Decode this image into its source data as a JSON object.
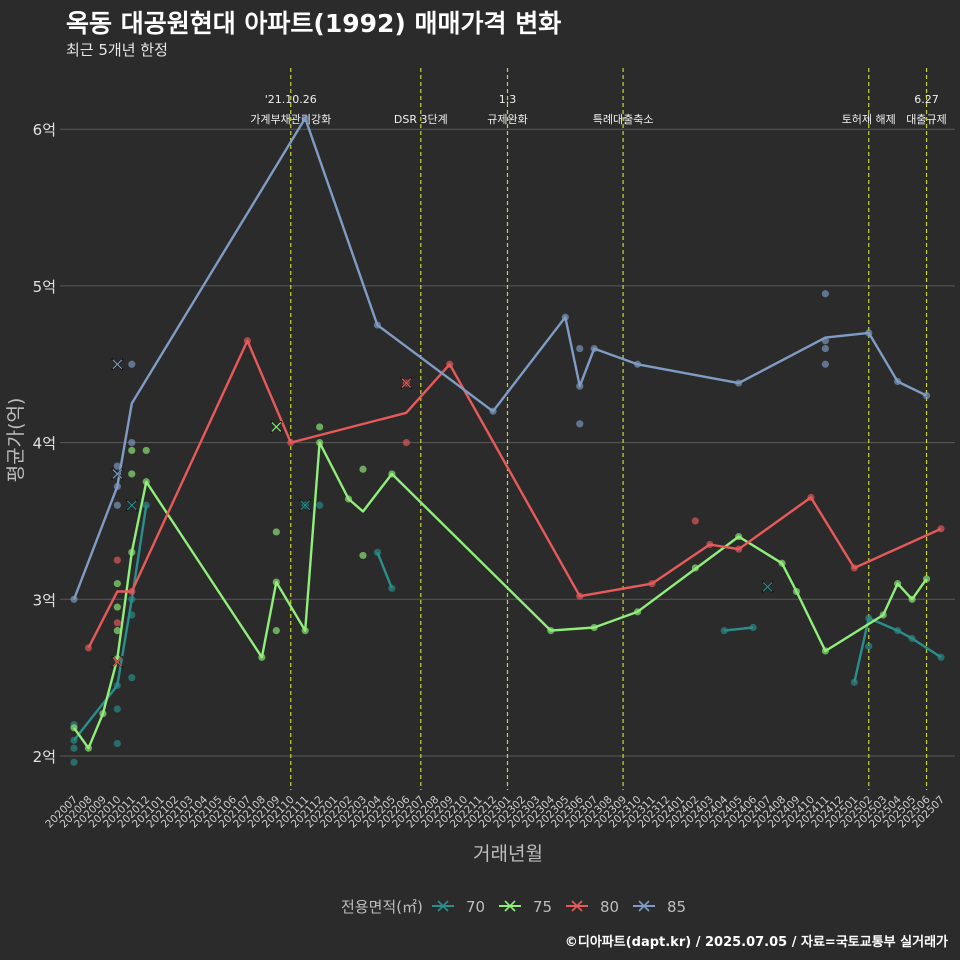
{
  "title": "옥동 대공원현대 아파트(1992) 매매가격 변화",
  "subtitle": "최근 5개년 한정",
  "caption": "©디아파트(dapt.kr) / 2025.07.05 / 자료=국토교통부 실거래가",
  "colors": {
    "background": "#2b2b2b",
    "grid": "#5a5a5a",
    "event_line": "#c8d43c",
    "axis_text": "#bdbdbd",
    "series_70": "#2a8f8c",
    "series_75": "#90ee7a",
    "series_80": "#e85a5a",
    "series_85": "#7f9cc4"
  },
  "chart_data": {
    "type": "line",
    "xlabel": "거래년월",
    "ylabel": "평균가(억)",
    "x_ticks": [
      "202007",
      "202008",
      "202009",
      "202010",
      "202011",
      "202012",
      "202101",
      "202102",
      "202103",
      "202104",
      "202105",
      "202106",
      "202107",
      "202108",
      "202109",
      "202110",
      "202111",
      "202112",
      "202201",
      "202202",
      "202203",
      "202204",
      "202205",
      "202206",
      "202207",
      "202208",
      "202209",
      "202210",
      "202211",
      "202212",
      "202301",
      "202302",
      "202303",
      "202304",
      "202305",
      "202306",
      "202307",
      "202308",
      "202309",
      "202310",
      "202311",
      "202312",
      "202401",
      "202402",
      "202403",
      "202404",
      "202405",
      "202406",
      "202407",
      "202408",
      "202409",
      "202410",
      "202411",
      "202412",
      "202501",
      "202502",
      "202503",
      "202504",
      "202505",
      "202506",
      "202507"
    ],
    "y_ticks": [
      {
        "value": 2,
        "label": "2억"
      },
      {
        "value": 3,
        "label": "3억"
      },
      {
        "value": 4,
        "label": "4억"
      },
      {
        "value": 5,
        "label": "5억"
      },
      {
        "value": 6,
        "label": "6억"
      }
    ],
    "ylim": [
      1.8,
      6.4
    ],
    "legend": {
      "title": "전용면적(㎡)",
      "position": "bottom"
    },
    "events": [
      {
        "x": "202110",
        "lines": [
          "'21.10.26",
          "가계부채관리강화"
        ]
      },
      {
        "x": "202207",
        "lines": [
          "DSR 3단계"
        ]
      },
      {
        "x": "202301",
        "lines": [
          "1.3",
          "규제완화"
        ]
      },
      {
        "x": "202309",
        "lines": [
          "특례대출축소"
        ]
      },
      {
        "x": "202502",
        "lines": [
          "토허제 해제"
        ]
      },
      {
        "x": "202506",
        "lines": [
          "6.27",
          "대출규제"
        ]
      }
    ],
    "series": [
      {
        "name": "70",
        "line": [
          [
            "202007",
            2.1
          ],
          [
            "202010",
            2.45
          ],
          [
            "202011",
            3.0
          ],
          [
            "202012",
            3.6
          ],
          [
            "202204",
            3.3
          ],
          [
            "202205",
            3.07
          ],
          [
            "202404",
            2.8
          ],
          [
            "202406",
            2.82
          ],
          [
            "202501",
            2.47
          ],
          [
            "202502",
            2.88
          ],
          [
            "202504",
            2.8
          ],
          [
            "202505",
            2.75
          ],
          [
            "202507",
            2.63
          ]
        ],
        "points": [
          [
            "202007",
            1.96
          ],
          [
            "202007",
            2.05
          ],
          [
            "202007",
            2.1
          ],
          [
            "202007",
            2.2
          ],
          [
            "202010",
            2.08
          ],
          [
            "202010",
            2.3
          ],
          [
            "202010",
            2.45
          ],
          [
            "202011",
            2.5
          ],
          [
            "202011",
            2.9
          ],
          [
            "202011",
            3.0
          ],
          [
            "202012",
            3.6
          ],
          [
            "202111",
            3.6
          ],
          [
            "202112",
            3.6
          ],
          [
            "202204",
            3.3
          ],
          [
            "202205",
            3.07
          ],
          [
            "202404",
            2.8
          ],
          [
            "202406",
            2.82
          ],
          [
            "202501",
            2.47
          ],
          [
            "202502",
            2.7
          ],
          [
            "202502",
            2.88
          ],
          [
            "202504",
            2.8
          ],
          [
            "202505",
            2.75
          ],
          [
            "202507",
            2.63
          ]
        ],
        "crosses": [
          [
            "202011",
            3.6
          ],
          [
            "202111",
            3.6
          ],
          [
            "202407",
            3.08
          ]
        ]
      },
      {
        "name": "75",
        "line": [
          [
            "202007",
            2.18
          ],
          [
            "202008",
            2.05
          ],
          [
            "202009",
            2.27
          ],
          [
            "202010",
            2.62
          ],
          [
            "202011",
            3.3
          ],
          [
            "202012",
            3.75
          ],
          [
            "202108",
            2.63
          ],
          [
            "202109",
            3.11
          ],
          [
            "202111",
            2.8
          ],
          [
            "202112",
            4.0
          ],
          [
            "202202",
            3.64
          ],
          [
            "202203",
            3.56
          ],
          [
            "202205",
            3.8
          ],
          [
            "202304",
            2.8
          ],
          [
            "202307",
            2.82
          ],
          [
            "202310",
            2.92
          ],
          [
            "202405",
            3.4
          ],
          [
            "202408",
            3.23
          ],
          [
            "202409",
            3.05
          ],
          [
            "202411",
            2.67
          ],
          [
            "202503",
            2.9
          ],
          [
            "202504",
            3.1
          ],
          [
            "202505",
            3.0
          ],
          [
            "202506",
            3.13
          ]
        ],
        "points": [
          [
            "202007",
            2.18
          ],
          [
            "202008",
            2.05
          ],
          [
            "202009",
            2.27
          ],
          [
            "202010",
            2.62
          ],
          [
            "202010",
            2.8
          ],
          [
            "202010",
            2.95
          ],
          [
            "202010",
            3.1
          ],
          [
            "202011",
            3.3
          ],
          [
            "202011",
            3.8
          ],
          [
            "202011",
            3.95
          ],
          [
            "202012",
            3.75
          ],
          [
            "202012",
            3.95
          ],
          [
            "202108",
            2.63
          ],
          [
            "202109",
            2.8
          ],
          [
            "202109",
            3.11
          ],
          [
            "202109",
            3.43
          ],
          [
            "202111",
            2.8
          ],
          [
            "202112",
            4.0
          ],
          [
            "202112",
            4.1
          ],
          [
            "202202",
            3.64
          ],
          [
            "202203",
            3.28
          ],
          [
            "202203",
            3.83
          ],
          [
            "202205",
            3.8
          ],
          [
            "202304",
            2.8
          ],
          [
            "202307",
            2.82
          ],
          [
            "202310",
            2.92
          ],
          [
            "202402",
            3.2
          ],
          [
            "202405",
            3.4
          ],
          [
            "202408",
            3.23
          ],
          [
            "202409",
            3.05
          ],
          [
            "202411",
            2.67
          ],
          [
            "202503",
            2.9
          ],
          [
            "202504",
            3.1
          ],
          [
            "202505",
            3.0
          ],
          [
            "202506",
            3.13
          ]
        ],
        "crosses": [
          [
            "202109",
            4.1
          ]
        ]
      },
      {
        "name": "80",
        "line": [
          [
            "202008",
            2.69
          ],
          [
            "202010",
            3.05
          ],
          [
            "202011",
            3.05
          ],
          [
            "202107",
            4.65
          ],
          [
            "202110",
            4.0
          ],
          [
            "202206",
            4.19
          ],
          [
            "202209",
            4.5
          ],
          [
            "202306",
            3.02
          ],
          [
            "202311",
            3.1
          ],
          [
            "202403",
            3.35
          ],
          [
            "202405",
            3.32
          ],
          [
            "202410",
            3.65
          ],
          [
            "202501",
            3.2
          ],
          [
            "202507",
            3.45
          ]
        ],
        "points": [
          [
            "202008",
            2.69
          ],
          [
            "202010",
            2.85
          ],
          [
            "202010",
            3.25
          ],
          [
            "202011",
            3.05
          ],
          [
            "202107",
            4.65
          ],
          [
            "202110",
            4.0
          ],
          [
            "202206",
            4.0
          ],
          [
            "202206",
            4.38
          ],
          [
            "202209",
            4.5
          ],
          [
            "202306",
            3.02
          ],
          [
            "202311",
            3.1
          ],
          [
            "202402",
            3.5
          ],
          [
            "202403",
            3.35
          ],
          [
            "202405",
            3.32
          ],
          [
            "202410",
            3.65
          ],
          [
            "202501",
            3.2
          ],
          [
            "202507",
            3.45
          ]
        ],
        "crosses": [
          [
            "202010",
            2.6
          ],
          [
            "202206",
            4.38
          ]
        ]
      },
      {
        "name": "85",
        "line": [
          [
            "202007",
            3.0
          ],
          [
            "202010",
            3.72
          ],
          [
            "202011",
            4.25
          ],
          [
            "202111",
            6.07
          ],
          [
            "202204",
            4.75
          ],
          [
            "202212",
            4.2
          ],
          [
            "202305",
            4.8
          ],
          [
            "202306",
            4.36
          ],
          [
            "202307",
            4.6
          ],
          [
            "202310",
            4.5
          ],
          [
            "202405",
            4.38
          ],
          [
            "202411",
            4.67
          ],
          [
            "202502",
            4.7
          ],
          [
            "202504",
            4.39
          ],
          [
            "202506",
            4.3
          ]
        ],
        "points": [
          [
            "202007",
            3.0
          ],
          [
            "202010",
            3.6
          ],
          [
            "202010",
            3.72
          ],
          [
            "202010",
            3.85
          ],
          [
            "202011",
            4.0
          ],
          [
            "202011",
            4.5
          ],
          [
            "202111",
            6.07
          ],
          [
            "202204",
            4.75
          ],
          [
            "202212",
            4.2
          ],
          [
            "202305",
            4.8
          ],
          [
            "202306",
            4.12
          ],
          [
            "202306",
            4.36
          ],
          [
            "202306",
            4.6
          ],
          [
            "202307",
            4.6
          ],
          [
            "202310",
            4.5
          ],
          [
            "202405",
            4.38
          ],
          [
            "202411",
            4.5
          ],
          [
            "202411",
            4.6
          ],
          [
            "202411",
            4.65
          ],
          [
            "202411",
            4.95
          ],
          [
            "202502",
            4.7
          ],
          [
            "202504",
            4.39
          ],
          [
            "202506",
            4.3
          ]
        ],
        "crosses": [
          [
            "202010",
            4.5
          ],
          [
            "202010",
            3.8
          ]
        ]
      }
    ]
  }
}
